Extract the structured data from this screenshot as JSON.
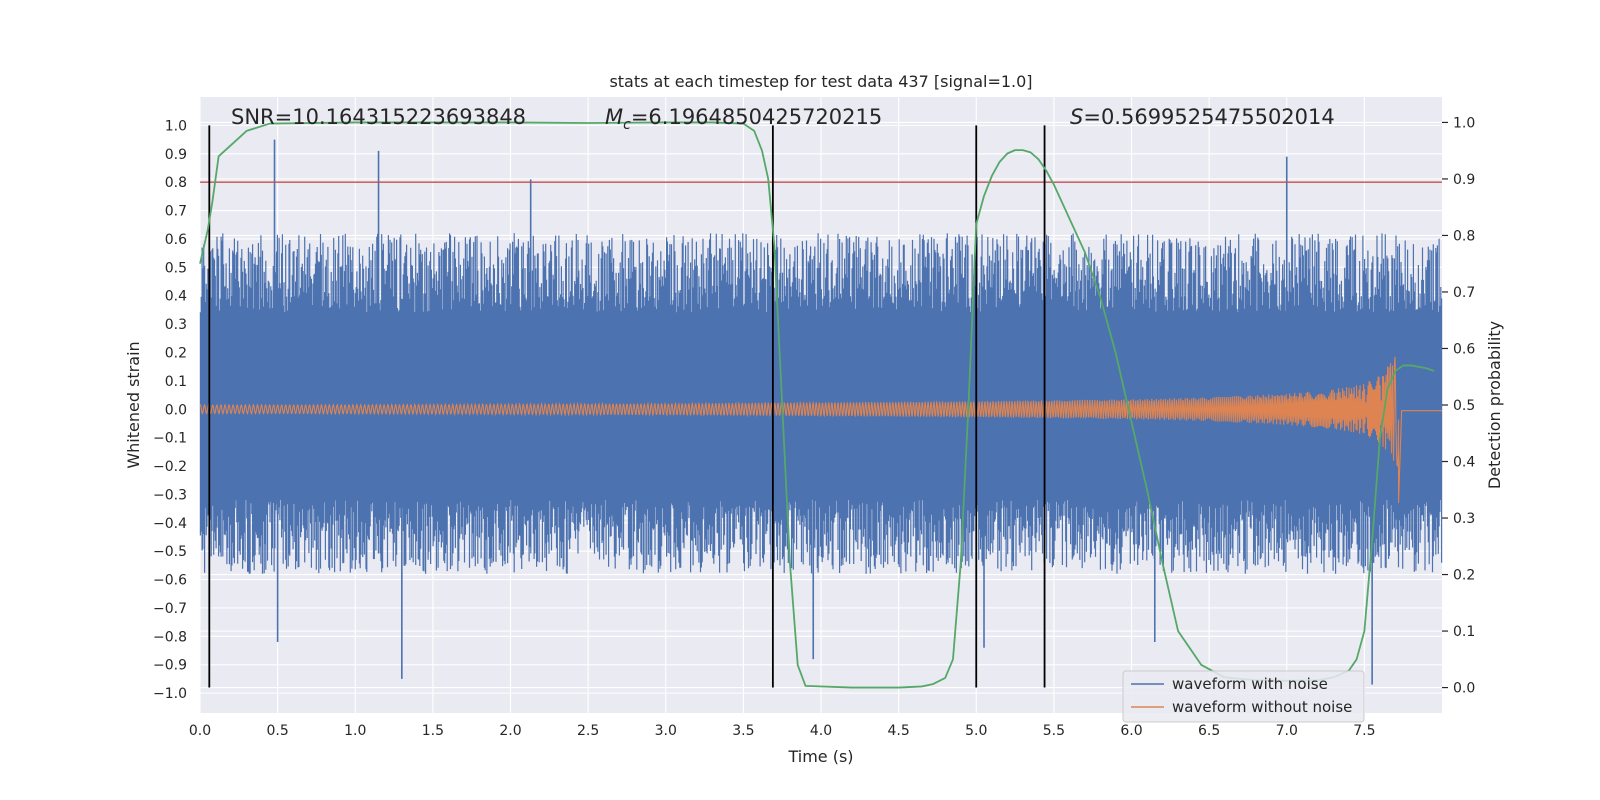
{
  "chart_data": {
    "type": "line",
    "title": "stats at each timestep for test data 437 [signal=1.0]",
    "xlabel": "Time (s)",
    "ylabel_left": "Whitened strain",
    "ylabel_right": "Detection probability",
    "xlim": [
      0.0,
      8.0
    ],
    "ylim_left": [
      -1.07,
      1.1
    ],
    "ylim_right": [
      -0.045,
      1.045
    ],
    "grid": true,
    "x_ticks": [
      0.0,
      0.5,
      1.0,
      1.5,
      2.0,
      2.5,
      3.0,
      3.5,
      4.0,
      4.5,
      5.0,
      5.5,
      6.0,
      6.5,
      7.0,
      7.5
    ],
    "x_tick_labels": [
      "0.0",
      "0.5",
      "1.0",
      "1.5",
      "2.0",
      "2.5",
      "3.0",
      "3.5",
      "4.0",
      "4.5",
      "5.0",
      "5.5",
      "6.0",
      "6.5",
      "7.0",
      "7.5"
    ],
    "y_left_ticks": [
      1.0,
      0.9,
      0.8,
      0.7,
      0.6,
      0.5,
      0.4,
      0.3,
      0.2,
      0.1,
      0.0,
      -0.1,
      -0.2,
      -0.3,
      -0.4,
      -0.5,
      -0.6,
      -0.7,
      -0.8,
      -0.9,
      -1.0
    ],
    "y_left_tick_labels": [
      "1.0",
      "0.9",
      "0.8",
      "0.7",
      "0.6",
      "0.5",
      "0.4",
      "0.3",
      "0.2",
      "0.1",
      "0.0",
      "−0.1",
      "−0.2",
      "−0.3",
      "−0.4",
      "−0.5",
      "−0.6",
      "−0.7",
      "−0.8",
      "−0.9",
      "−1.0"
    ],
    "y_right_ticks": [
      1.0,
      0.9,
      0.8,
      0.7,
      0.6,
      0.5,
      0.4,
      0.3,
      0.2,
      0.1,
      0.0
    ],
    "y_right_tick_labels": [
      "1.0",
      "0.9",
      "0.8",
      "0.7",
      "0.6",
      "0.5",
      "0.4",
      "0.3",
      "0.2",
      "0.1",
      "0.0"
    ],
    "annotations": {
      "snr": "SNR=10.164315223693848",
      "mc_symbol": "M",
      "mc_subscript": "c",
      "mc_value": "=6.1964850425720215",
      "s_symbol": "S",
      "s_value": "=0.5699525475502014"
    },
    "threshold": {
      "value": 0.8,
      "axis": "left",
      "color": "#c44e52"
    },
    "vertical_markers": {
      "x": [
        0.06,
        3.69,
        5.0,
        5.44
      ],
      "ymin": -0.98,
      "ymax": 1.0,
      "color": "#000000"
    },
    "series": [
      {
        "name": "waveform with noise",
        "color": "#4c72b0",
        "axis": "left",
        "kind": "noise-envelope",
        "x": [
          0.0,
          0.5,
          1.0,
          1.5,
          2.0,
          2.5,
          3.0,
          3.5,
          4.0,
          4.5,
          5.0,
          5.5,
          6.0,
          6.5,
          7.0,
          7.5,
          8.0
        ],
        "upper": [
          0.62,
          0.62,
          0.62,
          0.62,
          0.62,
          0.62,
          0.62,
          0.62,
          0.62,
          0.62,
          0.62,
          0.62,
          0.62,
          0.62,
          0.62,
          0.62,
          0.62
        ],
        "lower": [
          -0.58,
          -0.58,
          -0.58,
          -0.58,
          -0.58,
          -0.58,
          -0.58,
          -0.58,
          -0.58,
          -0.58,
          -0.58,
          -0.58,
          -0.58,
          -0.58,
          -0.58,
          -0.58,
          -0.58
        ],
        "peaks": [
          [
            0.48,
            0.95
          ],
          [
            1.15,
            0.91
          ],
          [
            7.0,
            0.89
          ],
          [
            2.13,
            0.81
          ],
          [
            0.5,
            -0.82
          ],
          [
            1.3,
            -0.95
          ],
          [
            3.95,
            -0.88
          ],
          [
            5.05,
            -0.84
          ],
          [
            7.55,
            -0.97
          ],
          [
            6.15,
            -0.82
          ]
        ]
      },
      {
        "name": "waveform without noise",
        "color": "#dd8452",
        "axis": "left",
        "kind": "chirp",
        "x": [
          0.0,
          1.0,
          2.0,
          3.0,
          4.0,
          5.0,
          6.0,
          6.5,
          7.0,
          7.3,
          7.5,
          7.6,
          7.68,
          7.72,
          7.74,
          8.0
        ],
        "amplitude": [
          0.015,
          0.016,
          0.018,
          0.02,
          0.024,
          0.028,
          0.035,
          0.042,
          0.055,
          0.07,
          0.09,
          0.12,
          0.17,
          0.24,
          0.0,
          0.0
        ]
      },
      {
        "name": "detection probability",
        "color": "#55a868",
        "axis": "right",
        "kind": "line",
        "x": [
          0.0,
          0.05,
          0.08,
          0.12,
          0.2,
          0.3,
          0.45,
          1.0,
          2.0,
          2.5,
          3.0,
          3.3,
          3.5,
          3.57,
          3.62,
          3.66,
          3.7,
          3.75,
          3.8,
          3.85,
          3.9,
          4.2,
          4.5,
          4.65,
          4.72,
          4.8,
          4.85,
          4.9,
          4.95,
          5.0,
          5.05,
          5.1,
          5.15,
          5.2,
          5.25,
          5.3,
          5.35,
          5.4,
          5.45,
          5.5,
          5.55,
          5.6,
          5.7,
          5.8,
          5.9,
          6.0,
          6.1,
          6.2,
          6.3,
          6.45,
          6.6,
          6.8,
          7.0,
          7.2,
          7.3,
          7.4,
          7.45,
          7.5,
          7.55,
          7.6,
          7.65,
          7.7,
          7.75,
          7.8,
          7.9,
          7.95
        ],
        "y": [
          0.75,
          0.81,
          0.86,
          0.94,
          0.96,
          0.985,
          0.998,
          1.0,
          1.0,
          0.999,
          1.0,
          1.0,
          0.998,
          0.985,
          0.95,
          0.9,
          0.78,
          0.5,
          0.22,
          0.04,
          0.003,
          0.0,
          0.0,
          0.002,
          0.006,
          0.017,
          0.05,
          0.22,
          0.5,
          0.82,
          0.87,
          0.905,
          0.93,
          0.945,
          0.951,
          0.951,
          0.947,
          0.935,
          0.915,
          0.89,
          0.86,
          0.83,
          0.77,
          0.69,
          0.59,
          0.47,
          0.35,
          0.22,
          0.1,
          0.04,
          0.018,
          0.013,
          0.012,
          0.013,
          0.018,
          0.03,
          0.05,
          0.1,
          0.26,
          0.44,
          0.53,
          0.56,
          0.57,
          0.57,
          0.565,
          0.56
        ]
      }
    ],
    "legend": {
      "placement": "bottom-right",
      "entries": [
        {
          "label": "waveform with noise",
          "color": "#4c72b0"
        },
        {
          "label": "waveform without noise",
          "color": "#dd8452"
        }
      ]
    }
  }
}
